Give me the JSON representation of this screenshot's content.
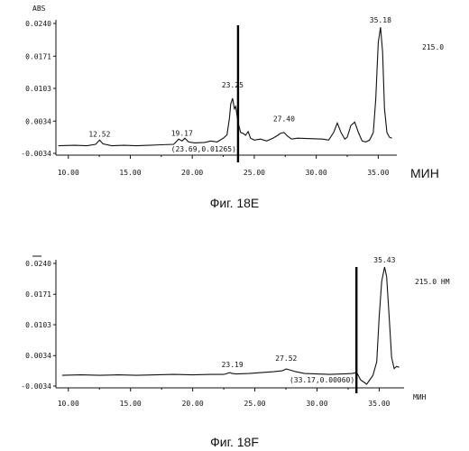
{
  "chart_data": [
    {
      "type": "line",
      "caption": "Фиг. 18E",
      "ylabel": "ABS",
      "y_ticks": [
        "0.0240",
        "0.0171",
        "0.0103",
        "0.0034",
        "-0.0034"
      ],
      "x_ticks": [
        "10.00",
        "15.00",
        "20.00",
        "25.00",
        "30.00",
        "35.00"
      ],
      "x_unit": "МИН",
      "wavelength_label": "215.0",
      "xlim": [
        9.0,
        36.5
      ],
      "ylim": [
        -0.0034,
        0.024
      ],
      "cursor": {
        "x": 23.69,
        "label": "(23.69,0.01265)"
      },
      "peak_labels": [
        {
          "text": "12.52",
          "x": 12.52,
          "y": -0.0008
        },
        {
          "text": "19.17",
          "x": 19.17,
          "y": -0.0006
        },
        {
          "text": "23.25",
          "x": 23.25,
          "y": 0.0095
        },
        {
          "text": "27.40",
          "x": 27.4,
          "y": 0.0024
        },
        {
          "text": "35.18",
          "x": 35.18,
          "y": 0.0232
        }
      ],
      "series": [
        {
          "x": [
            9.2,
            10.5,
            11.5,
            12.2,
            12.52,
            12.8,
            13.5,
            14.5,
            15.5,
            16.5,
            17.5,
            18.5,
            18.9,
            19.17,
            19.4,
            19.7,
            20.2,
            21.0,
            21.5,
            22.0,
            22.5,
            22.8,
            23.0,
            23.1,
            23.25,
            23.4,
            23.5,
            23.7,
            23.9,
            24.1,
            24.3,
            24.5,
            24.7,
            25.0,
            25.5,
            26.0,
            26.5,
            26.9,
            27.1,
            27.4,
            27.7,
            28.0,
            28.5,
            29.5,
            30.5,
            31.0,
            31.4,
            31.7,
            32.0,
            32.3,
            32.5,
            32.8,
            33.1,
            33.4,
            33.7,
            34.0,
            34.3,
            34.6,
            34.8,
            35.0,
            35.18,
            35.35,
            35.5,
            35.7,
            35.9,
            36.1
          ],
          "y": [
            -0.0018,
            -0.0017,
            -0.0018,
            -0.0015,
            -0.0006,
            -0.0014,
            -0.0018,
            -0.0017,
            -0.0018,
            -0.0017,
            -0.0016,
            -0.0015,
            -0.0004,
            -0.0008,
            -0.0002,
            -0.001,
            -0.0012,
            -0.0011,
            -0.0008,
            -0.001,
            -0.0002,
            0.0005,
            0.004,
            0.007,
            0.0082,
            0.006,
            0.0065,
            0.003,
            0.001,
            0.0008,
            0.0004,
            0.0012,
            -0.0002,
            -0.0006,
            -0.0004,
            -0.0008,
            -0.0002,
            0.0004,
            0.0008,
            0.001,
            0.0002,
            -0.0004,
            -0.0002,
            -0.0003,
            -0.0004,
            -0.0006,
            0.001,
            0.003,
            0.001,
            -0.0004,
            0.0,
            0.0025,
            0.0032,
            0.001,
            -0.0008,
            -0.001,
            -0.0006,
            0.001,
            0.008,
            0.02,
            0.0232,
            0.018,
            0.006,
            0.001,
            0.0,
            -0.0002
          ]
        }
      ]
    },
    {
      "type": "line",
      "caption": "Фиг. 18F",
      "ylabel": "",
      "y_ticks": [
        "0.0240",
        "0.0171",
        "0.0103",
        "0.0034",
        "-0.0034"
      ],
      "x_ticks": [
        "10.00",
        "15.00",
        "20.00",
        "25.00",
        "30.00",
        "35.00"
      ],
      "x_unit": "МИН",
      "wavelength_label": "215.0 НМ",
      "xlim": [
        9.0,
        37.0
      ],
      "ylim": [
        -0.0034,
        0.024
      ],
      "cursor": {
        "x": 33.17,
        "label": "(33.17,0.00060)"
      },
      "peak_labels": [
        {
          "text": "23.19",
          "x": 23.19,
          "y": -0.0002
        },
        {
          "text": "27.52",
          "x": 27.52,
          "y": 0.0012
        },
        {
          "text": "35.43",
          "x": 35.43,
          "y": 0.0232
        }
      ],
      "series": [
        {
          "x": [
            9.5,
            11.0,
            12.5,
            14.0,
            15.5,
            17.0,
            18.5,
            20.0,
            21.5,
            22.5,
            23.0,
            23.19,
            23.5,
            24.5,
            25.5,
            26.5,
            27.2,
            27.52,
            27.8,
            28.3,
            29.0,
            30.0,
            31.0,
            32.0,
            32.8,
            33.2,
            33.5,
            34.0,
            34.5,
            34.8,
            35.0,
            35.2,
            35.43,
            35.6,
            35.8,
            36.0,
            36.2,
            36.4,
            36.6
          ],
          "y": [
            -0.001,
            -0.0009,
            -0.001,
            -0.0009,
            -0.001,
            -0.0009,
            -0.0008,
            -0.0009,
            -0.0008,
            -0.0008,
            -0.0004,
            -0.0006,
            -0.0007,
            -0.0006,
            -0.0004,
            -0.0002,
            0.0,
            0.0004,
            0.0002,
            -0.0002,
            -0.0006,
            -0.0007,
            -0.0008,
            -0.0007,
            -0.0006,
            -0.0004,
            -0.002,
            -0.003,
            -0.001,
            0.002,
            0.012,
            0.02,
            0.0232,
            0.021,
            0.012,
            0.003,
            0.0005,
            0.001,
            0.0008
          ]
        }
      ]
    }
  ]
}
